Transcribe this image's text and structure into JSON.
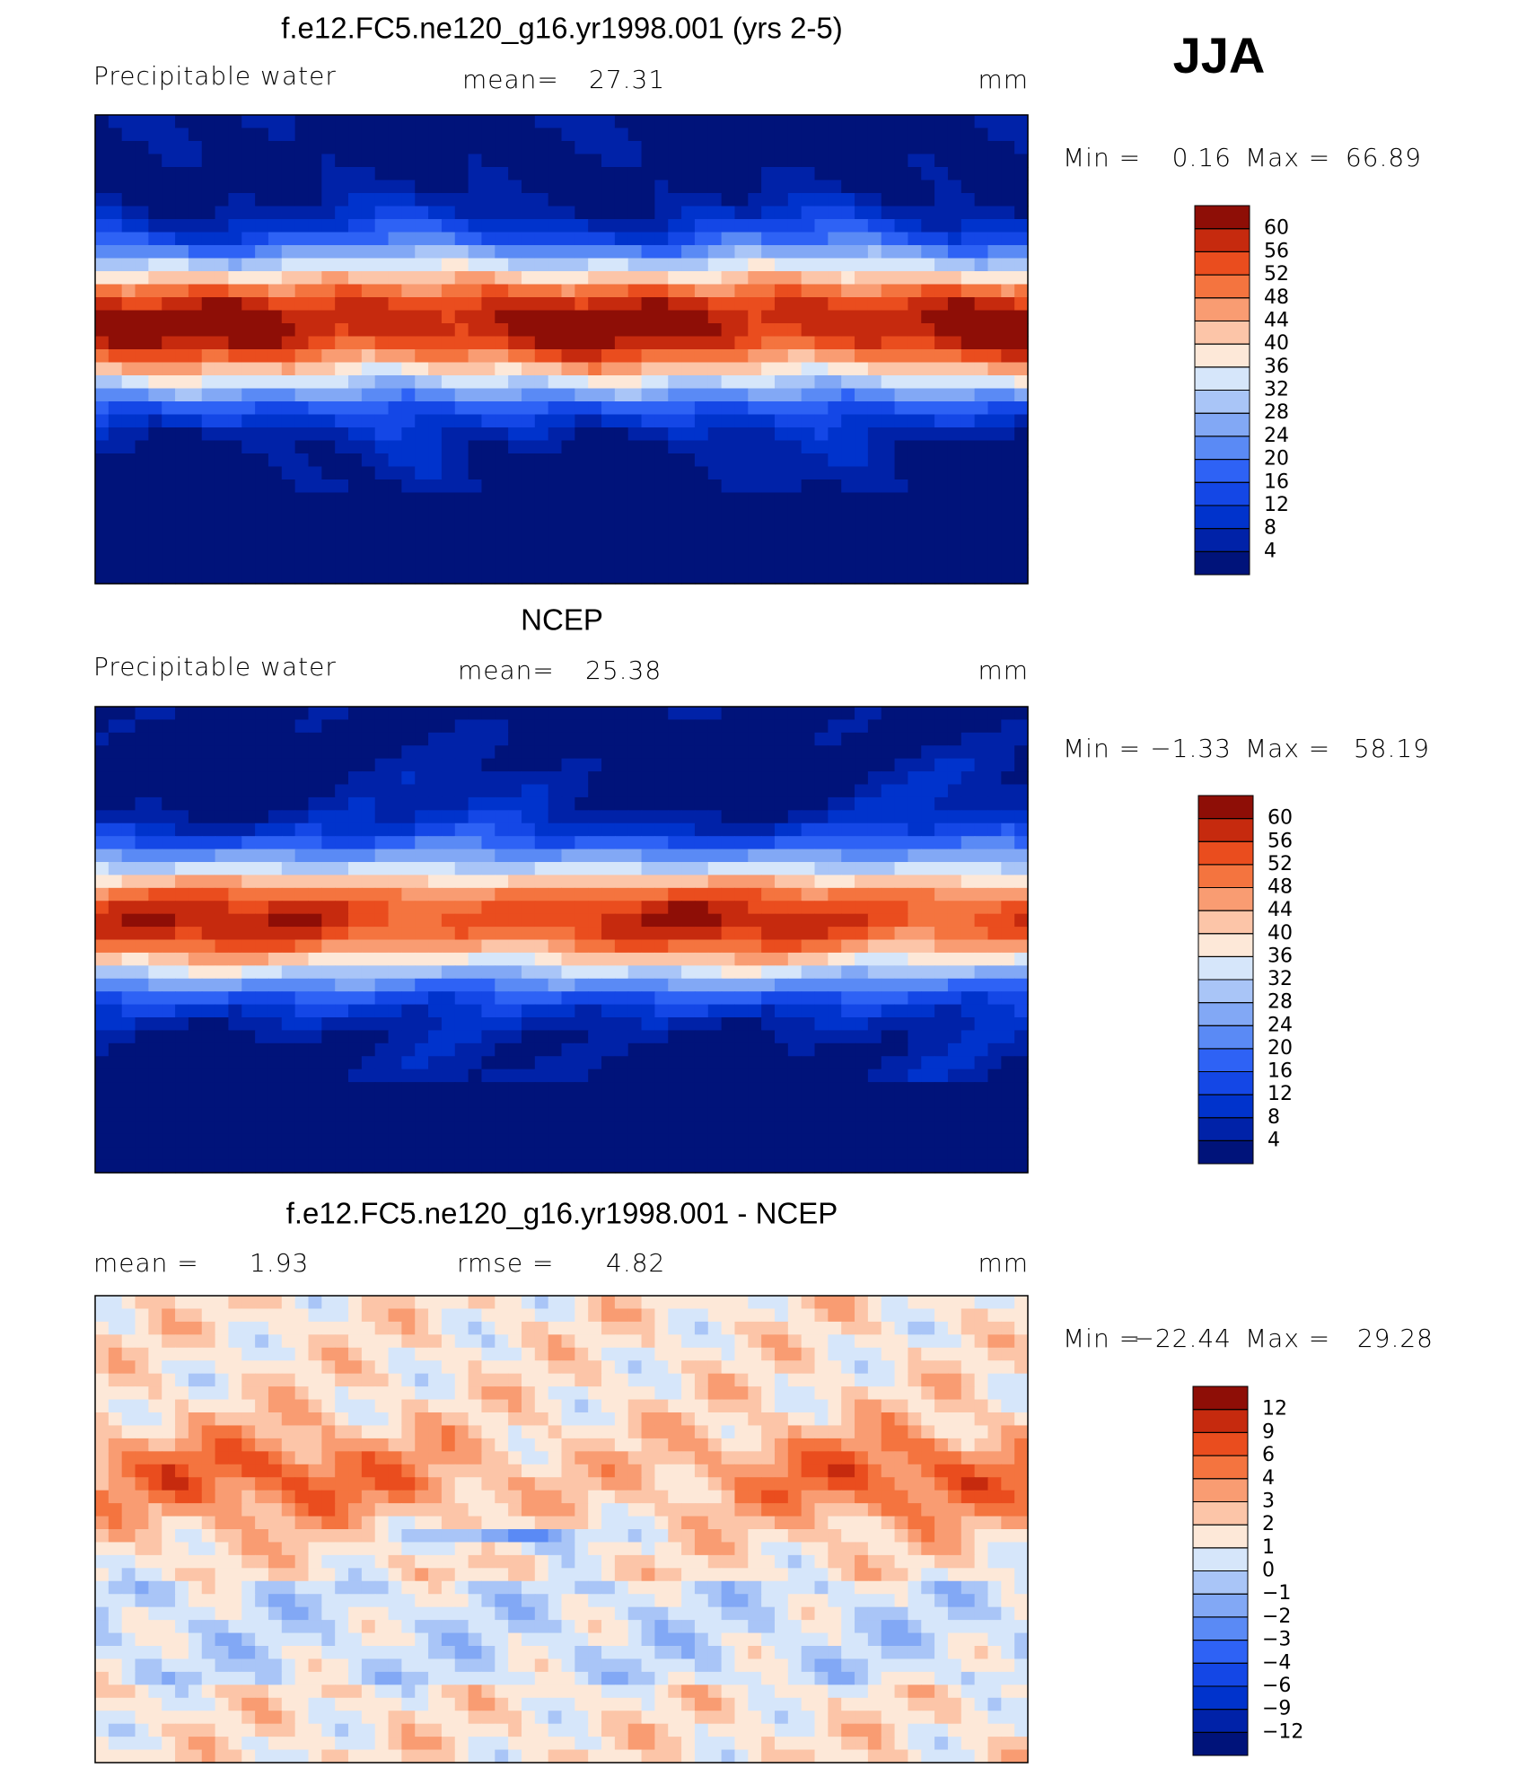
{
  "figure_label": "JJA",
  "chart_data": [
    {
      "type": "contour-map",
      "title": "f.e12.FC5.ne120_g16.yr1998.001 (yrs 2-5)",
      "subtitle": "Precipitable water",
      "mean_label": "mean=",
      "mean": 27.31,
      "units": "mm",
      "min_label": "Min =",
      "min": 0.16,
      "max_label": "Max =",
      "max": 66.89,
      "levels": [
        4,
        8,
        12,
        16,
        20,
        24,
        28,
        32,
        36,
        40,
        44,
        48,
        52,
        56,
        60
      ],
      "colors": [
        "#00137a",
        "#0022a8",
        "#0033cc",
        "#1447e6",
        "#2e62f5",
        "#5a8af5",
        "#82a8f5",
        "#a9c5f7",
        "#d6e6fa",
        "#fde8d8",
        "#fcc5a8",
        "#f99c72",
        "#f4743f",
        "#ea4d1e",
        "#c62a0e",
        "#8e0e06"
      ]
    },
    {
      "type": "contour-map",
      "title": "NCEP",
      "subtitle": "Precipitable water",
      "mean_label": "mean=",
      "mean": 25.38,
      "units": "mm",
      "min_label": "Min =",
      "min": {
        "value": -1.33,
        "label": "−1.33"
      },
      "max_label": "Max =",
      "max": 58.19,
      "levels": [
        4,
        8,
        12,
        16,
        20,
        24,
        28,
        32,
        36,
        40,
        44,
        48,
        52,
        56,
        60
      ],
      "colors": [
        "#00137a",
        "#0022a8",
        "#0033cc",
        "#1447e6",
        "#2e62f5",
        "#5a8af5",
        "#82a8f5",
        "#a9c5f7",
        "#d6e6fa",
        "#fde8d8",
        "#fcc5a8",
        "#f99c72",
        "#f4743f",
        "#ea4d1e",
        "#c62a0e",
        "#8e0e06"
      ]
    },
    {
      "type": "contour-map",
      "title": "f.e12.FC5.ne120_g16.yr1998.001 - NCEP",
      "mean_label": "mean =",
      "mean": 1.93,
      "rmse_label": "rmse =",
      "rmse": 4.82,
      "units": "mm",
      "min_label": "Min =",
      "min": {
        "value": -22.44,
        "label": "−22.44"
      },
      "max_label": "Max =",
      "max": 29.28,
      "levels": [
        {
          "value": -12,
          "label": "−12"
        },
        {
          "value": -9,
          "label": "−9"
        },
        {
          "value": -6,
          "label": "−6"
        },
        {
          "value": -4,
          "label": "−4"
        },
        {
          "value": -3,
          "label": "−3"
        },
        {
          "value": -2,
          "label": "−2"
        },
        {
          "value": -1,
          "label": "−1"
        },
        0,
        1,
        2,
        3,
        4,
        6,
        9,
        12
      ],
      "colors": [
        "#00137a",
        "#0022a8",
        "#0033cc",
        "#1447e6",
        "#2e62f5",
        "#5a8af5",
        "#82a8f5",
        "#a9c5f7",
        "#d6e6fa",
        "#fde8d8",
        "#fcc5a8",
        "#f99c72",
        "#f4743f",
        "#ea4d1e",
        "#c62a0e",
        "#8e0e06"
      ]
    }
  ]
}
